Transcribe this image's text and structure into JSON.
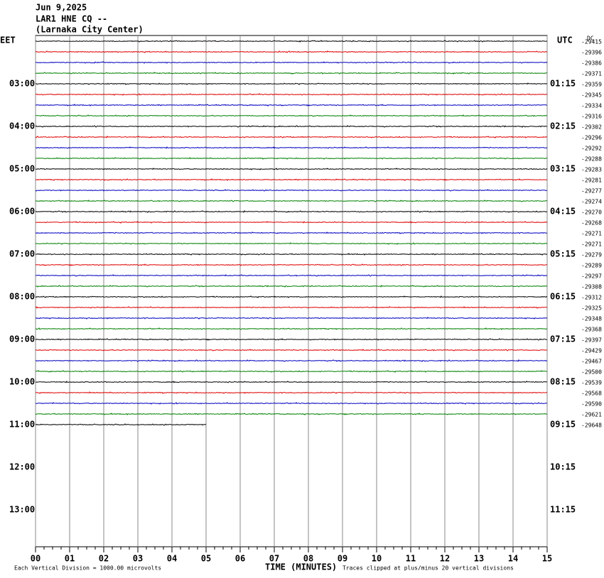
{
  "chart_data": {
    "type": "helicorder",
    "title": "Jun 9,2025",
    "subtitle": [
      "LAR1 HNE CQ --",
      "(Larnaka City Center)"
    ],
    "left_axis_label": "EET",
    "right_axis_label": "UTC",
    "dc_label": "DC",
    "xlabel": "TIME (MINUTES)",
    "scale_note": "Each Vertical Division = 1000.00 microvolts",
    "clip_note": "Traces clipped at plus/minus 20 vertical divisions",
    "xlim": [
      0,
      15
    ],
    "xticks": [
      {
        "value": 0,
        "label": "00"
      },
      {
        "value": 1,
        "label": "01"
      },
      {
        "value": 2,
        "label": "02"
      },
      {
        "value": 3,
        "label": "03"
      },
      {
        "value": 4,
        "label": "04"
      },
      {
        "value": 5,
        "label": "05"
      },
      {
        "value": 6,
        "label": "06"
      },
      {
        "value": 7,
        "label": "07"
      },
      {
        "value": 8,
        "label": "08"
      },
      {
        "value": 9,
        "label": "09"
      },
      {
        "value": 10,
        "label": "10"
      },
      {
        "value": 11,
        "label": "11"
      },
      {
        "value": 12,
        "label": "12"
      },
      {
        "value": 13,
        "label": "13"
      },
      {
        "value": 14,
        "label": "14"
      },
      {
        "value": 15,
        "label": "15"
      }
    ],
    "colors": [
      "#000000",
      "#e00000",
      "#0000c0",
      "#008000"
    ],
    "hour_labels": [
      {
        "left": "03:00",
        "right": "01:15"
      },
      {
        "left": "04:00",
        "right": "02:15"
      },
      {
        "left": "05:00",
        "right": "03:15"
      },
      {
        "left": "06:00",
        "right": "04:15"
      },
      {
        "left": "07:00",
        "right": "05:15"
      },
      {
        "left": "08:00",
        "right": "06:15"
      },
      {
        "left": "09:00",
        "right": "07:15"
      },
      {
        "left": "10:00",
        "right": "08:15"
      },
      {
        "left": "11:00",
        "right": "09:15"
      },
      {
        "left": "12:00",
        "right": "10:15"
      },
      {
        "left": "13:00",
        "right": "11:15"
      }
    ],
    "trace_offsets": [
      -29415,
      -29396,
      -29386,
      -29371,
      -29359,
      -29345,
      -29334,
      -29316,
      -29302,
      -29296,
      -29292,
      -29288,
      -29283,
      -29281,
      -29277,
      -29274,
      -29270,
      -29268,
      -29271,
      -29271,
      -29279,
      -29289,
      -29297,
      -29308,
      -29312,
      -29325,
      -29348,
      -29368,
      -29397,
      -29429,
      -29467,
      -29500,
      -29539,
      -29568,
      -29590,
      -29621,
      -29648
    ],
    "last_trace_minutes": 5
  }
}
